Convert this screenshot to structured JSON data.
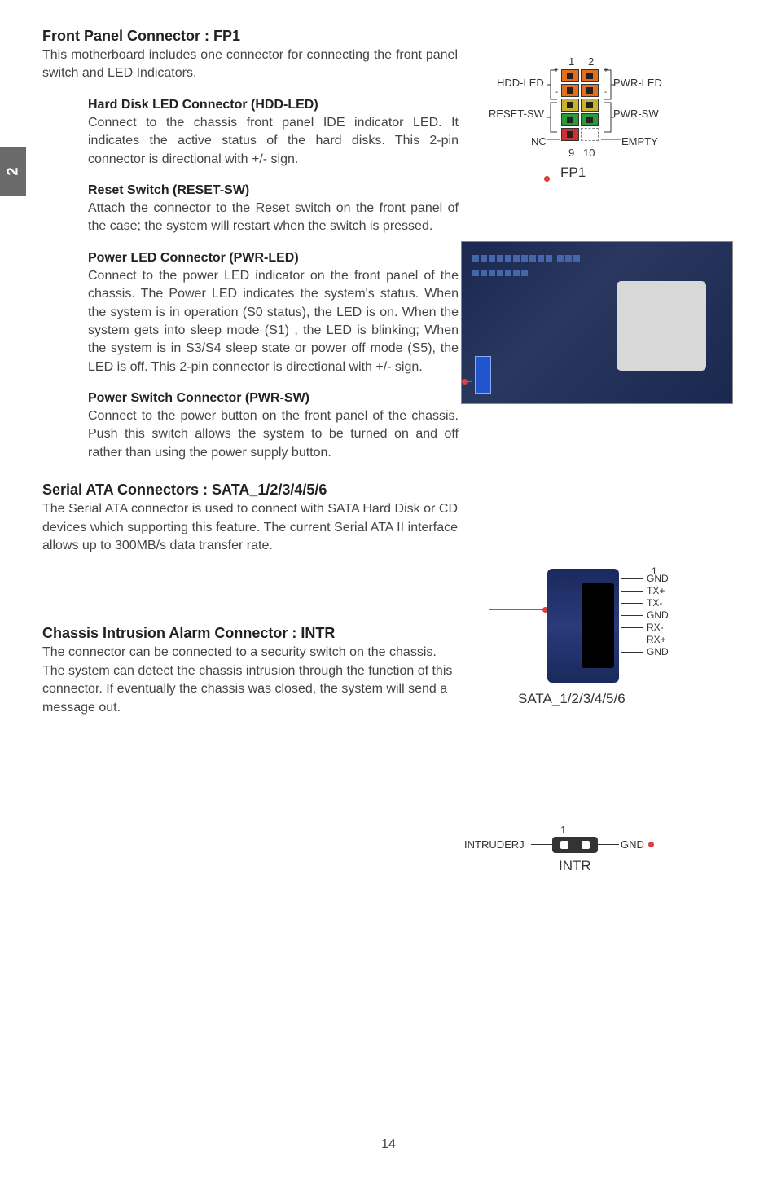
{
  "page_tab": "2",
  "page_number": "14",
  "fp1": {
    "title": "Front Panel Connector : FP1",
    "intro": "This motherboard includes one connector for connecting the front panel switch and LED Indicators.",
    "hdd": {
      "title": "Hard Disk LED Connector (HDD-LED)",
      "body": "Connect to the chassis front panel IDE indicator LED. It indicates the active status of the hard disks. This 2-pin connector is directional with +/- sign."
    },
    "reset": {
      "title": "Reset Switch (RESET-SW)",
      "body": "Attach the connector to the Reset switch on the front panel of the case; the system will restart when the switch is pressed."
    },
    "pwrled": {
      "title": "Power LED Connector (PWR-LED)",
      "body": "Connect to the power LED indicator on the front panel of the chassis. The Power LED indicates the system's status. When the system is in operation (S0 status), the LED is on. When the system gets into sleep mode (S1) , the LED is blinking; When the system is in S3/S4 sleep state or power off mode (S5), the LED is off. This 2-pin connector is directional with +/- sign."
    },
    "pwrsw": {
      "title": "Power Switch Connector (PWR-SW)",
      "body": "Connect to the power button on the front panel of the chassis. Push this switch allows the system to be turned on and off rather than using the power supply button."
    },
    "diagram": {
      "pin_top_left": "1",
      "pin_top_right": "2",
      "pin_bot_left": "9",
      "pin_bot_right": "10",
      "left_labels": [
        "HDD-LED",
        "RESET-SW",
        "NC"
      ],
      "right_labels": [
        "PWR-LED",
        "PWR-SW",
        "EMPTY"
      ],
      "plus": "+",
      "minus": "-",
      "caption": "FP1",
      "colors": {
        "row1": "#e07020",
        "row2": "#e07020",
        "row3": "#c9b030",
        "row4": "#2a9a3a",
        "row5_left": "#d03030",
        "row5_right_border": "#888"
      }
    }
  },
  "sata": {
    "title": "Serial ATA Connectors : SATA_1/2/3/4/5/6",
    "body": "The Serial ATA connector is used to connect with SATA Hard Disk or CD devices which supporting this feature. The current Serial ATA II interface allows up to 300MB/s data transfer rate.",
    "diagram": {
      "pin1": "1",
      "pins": [
        "GND",
        "TX+",
        "TX-",
        "GND",
        "RX-",
        "RX+",
        "GND"
      ],
      "caption": "SATA_1/2/3/4/5/6"
    }
  },
  "intr": {
    "title": "Chassis Intrusion Alarm Connector : INTR",
    "body": "The connector can be connected to a security switch on the chassis. The system can detect the chassis intrusion through the function of this connector. If eventually the chassis was closed, the system will send a message out.",
    "diagram": {
      "pin1": "1",
      "left_label": "INTRUDERJ",
      "right_label": "GND",
      "caption": "INTR"
    }
  }
}
